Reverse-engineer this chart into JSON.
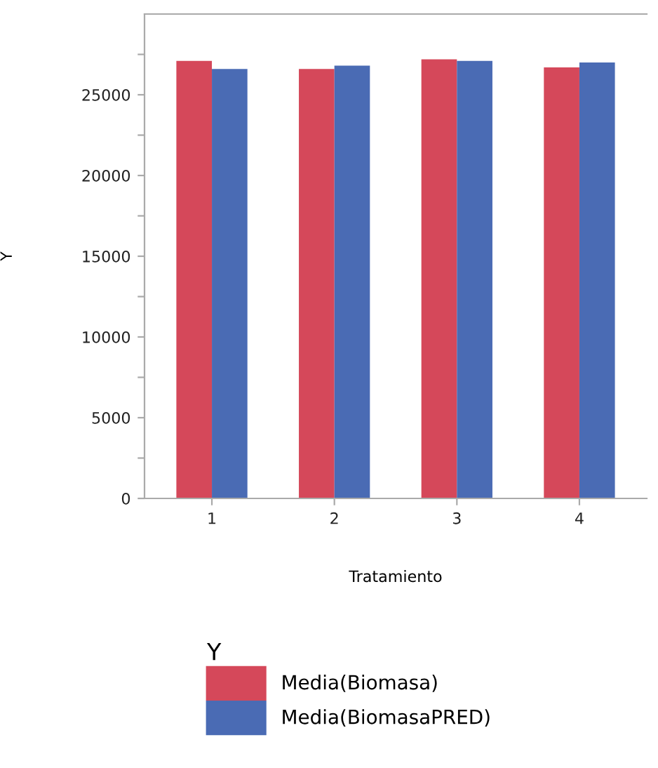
{
  "chart_data": {
    "type": "bar",
    "xlabel": "Tratamiento",
    "ylabel": "Y",
    "legend_title": "Y",
    "categories": [
      "1",
      "2",
      "3",
      "4"
    ],
    "series": [
      {
        "name": "Media(Biomasa)",
        "color": "#d5485a",
        "values": [
          27100,
          26600,
          27200,
          26700
        ]
      },
      {
        "name": "Media(BiomasaPRED)",
        "color": "#4a6bb4",
        "values": [
          26600,
          26800,
          27100,
          27000
        ]
      }
    ],
    "ylim": [
      0,
      30000
    ],
    "yticks": [
      0,
      {
        "value": 2500,
        "label": null
      },
      5000,
      {
        "value": 7500,
        "label": null
      },
      10000,
      {
        "value": 12500,
        "label": null
      },
      15000,
      {
        "value": 17500,
        "label": null
      },
      20000,
      {
        "value": 22500,
        "label": null
      },
      25000,
      {
        "value": 27500,
        "label": null
      }
    ],
    "grid": false,
    "legend": "bottom"
  }
}
